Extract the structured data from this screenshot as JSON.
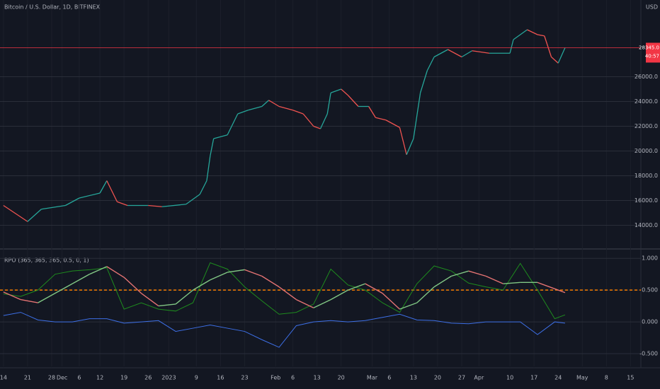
{
  "chart_data": [
    {
      "type": "line",
      "title": "Bitcoin / U.S. Dollar, 1D, BITFINEX",
      "currency": "USD",
      "x": [
        "2022-11-14",
        "2022-11-21",
        "2022-11-25",
        "2022-12-02",
        "2022-12-06",
        "2022-12-12",
        "2022-12-14",
        "2022-12-17",
        "2022-12-20",
        "2022-12-26",
        "2022-12-30",
        "2023-01-06",
        "2023-01-10",
        "2023-01-12",
        "2023-01-13",
        "2023-01-14",
        "2023-01-18",
        "2023-01-21",
        "2023-01-24",
        "2023-01-28",
        "2023-01-30",
        "2023-02-02",
        "2023-02-06",
        "2023-02-09",
        "2023-02-12",
        "2023-02-14",
        "2023-02-16",
        "2023-02-17",
        "2023-02-20",
        "2023-02-22",
        "2023-02-25",
        "2023-02-28",
        "2023-03-02",
        "2023-03-05",
        "2023-03-09",
        "2023-03-11",
        "2023-03-13",
        "2023-03-15",
        "2023-03-17",
        "2023-03-19",
        "2023-03-23",
        "2023-03-27",
        "2023-03-30",
        "2023-04-04",
        "2023-04-10",
        "2023-04-11",
        "2023-04-15",
        "2023-04-18",
        "2023-04-20",
        "2023-04-22",
        "2023-04-24",
        "2023-04-26"
      ],
      "values": [
        15600,
        14300,
        15300,
        15600,
        16200,
        16600,
        17600,
        15900,
        15600,
        15600,
        15500,
        15700,
        16500,
        17600,
        19600,
        21000,
        21300,
        23000,
        23300,
        23600,
        24100,
        23600,
        23300,
        23000,
        22000,
        21800,
        23000,
        24700,
        25000,
        24500,
        23600,
        23600,
        22700,
        22500,
        21900,
        19700,
        21000,
        24700,
        26500,
        27600,
        28200,
        27600,
        28100,
        27900,
        27900,
        29000,
        29800,
        29400,
        29300,
        27600,
        27100,
        28345
      ],
      "up_color": "#26a69a",
      "down_color": "#ef5350",
      "ylim": [
        12200,
        32200
      ],
      "yticks": [
        {
          "value": 14000,
          "label": "14000.0"
        },
        {
          "value": 16000,
          "label": "16000.0"
        },
        {
          "value": 18000,
          "label": "18000.0"
        },
        {
          "value": 20000,
          "label": "20000.0"
        },
        {
          "value": 22000,
          "label": "22000.0"
        },
        {
          "value": 24000,
          "label": "24000.0"
        },
        {
          "value": 26000,
          "label": "26000.0"
        }
      ],
      "last_price": {
        "value": 28345,
        "label": "28345.0"
      },
      "countdown": "40:57",
      "last_price_color": "#f23645",
      "grid": true
    },
    {
      "type": "line",
      "title": "RPO (365, 365, 365, 0.5, 0, 1)",
      "x": [
        "2022-11-14",
        "2022-11-19",
        "2022-11-24",
        "2022-11-29",
        "2022-12-04",
        "2022-12-09",
        "2022-12-14",
        "2022-12-19",
        "2022-12-24",
        "2022-12-29",
        "2023-01-03",
        "2023-01-08",
        "2023-01-13",
        "2023-01-18",
        "2023-01-23",
        "2023-01-28",
        "2023-02-02",
        "2023-02-07",
        "2023-02-12",
        "2023-02-17",
        "2023-02-22",
        "2023-02-27",
        "2023-03-04",
        "2023-03-09",
        "2023-03-14",
        "2023-03-19",
        "2023-03-24",
        "2023-03-29",
        "2023-04-03",
        "2023-04-08",
        "2023-04-13",
        "2023-04-18",
        "2023-04-23",
        "2023-04-26"
      ],
      "series": [
        {
          "color": "#1e8c1e",
          "values": [
            0.44,
            0.4,
            0.5,
            0.75,
            0.8,
            0.82,
            0.85,
            0.2,
            0.3,
            0.2,
            0.17,
            0.3,
            0.93,
            0.83,
            0.55,
            0.33,
            0.12,
            0.15,
            0.28,
            0.83,
            0.58,
            0.5,
            0.3,
            0.15,
            0.6,
            0.88,
            0.8,
            0.61,
            0.55,
            0.5,
            0.92,
            0.5,
            0.05,
            0.11
          ]
        },
        {
          "rising_color": "#81c784",
          "falling_color": "#e57373",
          "values": [
            0.47,
            0.35,
            0.3,
            0.45,
            0.6,
            0.75,
            0.87,
            0.7,
            0.45,
            0.25,
            0.28,
            0.5,
            0.66,
            0.78,
            0.82,
            0.72,
            0.55,
            0.35,
            0.22,
            0.35,
            0.5,
            0.6,
            0.45,
            0.2,
            0.3,
            0.55,
            0.72,
            0.8,
            0.72,
            0.6,
            0.62,
            0.62,
            0.52,
            0.46
          ]
        },
        {
          "color": "#3d6fe6",
          "values": [
            0.1,
            0.15,
            0.03,
            0,
            0,
            0.05,
            0.05,
            -0.02,
            0,
            0.02,
            -0.15,
            -0.1,
            -0.05,
            -0.1,
            -0.15,
            -0.28,
            -0.4,
            -0.06,
            0,
            0.02,
            0,
            0.02,
            0.07,
            0.12,
            0.03,
            0.02,
            -0.02,
            -0.03,
            0,
            0,
            0,
            -0.2,
            0,
            -0.02
          ]
        }
      ],
      "ylim": [
        -0.7,
        1.08
      ],
      "yticks": [
        {
          "value": 1,
          "label": "1.000"
        },
        {
          "value": 0.5,
          "label": "0.500"
        },
        {
          "value": 0,
          "label": "0.000"
        },
        {
          "value": -0.5,
          "label": "-0.500"
        }
      ],
      "reference_line": 0.5,
      "reference_color": "#f57c00",
      "grid": true,
      "xlim": [
        "2022-11-13",
        "2023-05-18"
      ],
      "xticks": [
        {
          "value": "2022-11-14",
          "label": "14"
        },
        {
          "value": "2022-11-21",
          "label": "21"
        },
        {
          "value": "2022-11-28",
          "label": "28"
        },
        {
          "value": "2022-12-01",
          "label": "Dec"
        },
        {
          "value": "2022-12-06",
          "label": "6"
        },
        {
          "value": "2022-12-12",
          "label": "12"
        },
        {
          "value": "2022-12-19",
          "label": "19"
        },
        {
          "value": "2022-12-26",
          "label": "26"
        },
        {
          "value": "2023-01-01",
          "label": "2023"
        },
        {
          "value": "2023-01-09",
          "label": "9"
        },
        {
          "value": "2023-01-16",
          "label": "16"
        },
        {
          "value": "2023-01-23",
          "label": "23"
        },
        {
          "value": "2023-02-01",
          "label": "Feb"
        },
        {
          "value": "2023-02-06",
          "label": "6"
        },
        {
          "value": "2023-02-13",
          "label": "13"
        },
        {
          "value": "2023-02-20",
          "label": "20"
        },
        {
          "value": "2023-03-01",
          "label": "Mar"
        },
        {
          "value": "2023-03-06",
          "label": "6"
        },
        {
          "value": "2023-03-13",
          "label": "13"
        },
        {
          "value": "2023-03-20",
          "label": "20"
        },
        {
          "value": "2023-03-27",
          "label": "27"
        },
        {
          "value": "2023-04-01",
          "label": "Apr"
        },
        {
          "value": "2023-04-10",
          "label": "10"
        },
        {
          "value": "2023-04-17",
          "label": "17"
        },
        {
          "value": "2023-04-24",
          "label": "24"
        },
        {
          "value": "2023-05-01",
          "label": "May"
        },
        {
          "value": "2023-05-08",
          "label": "8"
        },
        {
          "value": "2023-05-15",
          "label": "15"
        }
      ]
    }
  ]
}
